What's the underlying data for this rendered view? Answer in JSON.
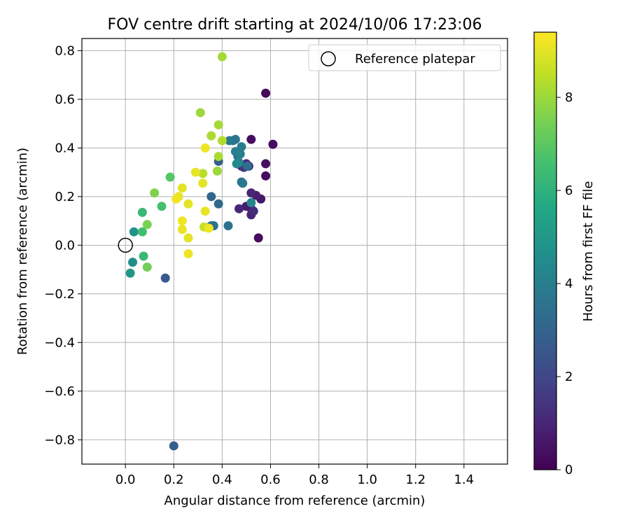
{
  "chart_data": {
    "type": "scatter",
    "title": "FOV centre drift starting at 2024/10/06 17:23:06",
    "xlabel": "Angular distance from reference (arcmin)",
    "ylabel": "Rotation from reference (arcmin)",
    "xlim": [
      -0.18,
      1.58
    ],
    "ylim": [
      -0.9,
      0.85
    ],
    "x_ticks": [
      0.0,
      0.2,
      0.4,
      0.6,
      0.8,
      1.0,
      1.2,
      1.4
    ],
    "x_tick_labels": [
      "0.0",
      "0.2",
      "0.4",
      "0.6",
      "0.8",
      "1.0",
      "1.2",
      "1.4"
    ],
    "y_ticks": [
      -0.8,
      -0.6,
      -0.4,
      -0.2,
      0.0,
      0.2,
      0.4,
      0.6,
      0.8
    ],
    "y_tick_labels": [
      "−0.8",
      "−0.6",
      "−0.4",
      "−0.2",
      "0.0",
      "0.2",
      "0.4",
      "0.6",
      "0.8"
    ],
    "grid": true,
    "legend": {
      "placement": "top-right",
      "entries": [
        {
          "label": "Reference platepar",
          "marker": "open-circle"
        }
      ]
    },
    "reference_point": {
      "x": 0.0,
      "y": 0.0
    },
    "colorbar": {
      "label": "Hours from first FF file",
      "range": [
        0,
        9.4
      ],
      "ticks": [
        0,
        2,
        4,
        6,
        8
      ],
      "tick_labels": [
        "0",
        "2",
        "4",
        "6",
        "8"
      ],
      "colormap": "viridis"
    },
    "points": [
      {
        "x": 0.58,
        "y": 0.625,
        "h": 0.2
      },
      {
        "x": 0.61,
        "y": 0.415,
        "h": 0.3
      },
      {
        "x": 0.58,
        "y": 0.335,
        "h": 0.4
      },
      {
        "x": 0.58,
        "y": 0.285,
        "h": 0.3
      },
      {
        "x": 0.52,
        "y": 0.435,
        "h": 0.3
      },
      {
        "x": 0.55,
        "y": 0.03,
        "h": 0.3
      },
      {
        "x": 0.56,
        "y": 0.19,
        "h": 0.6
      },
      {
        "x": 0.54,
        "y": 0.205,
        "h": 0.8
      },
      {
        "x": 0.52,
        "y": 0.215,
        "h": 1.0
      },
      {
        "x": 0.52,
        "y": 0.15,
        "h": 1.0
      },
      {
        "x": 0.52,
        "y": 0.125,
        "h": 0.9
      },
      {
        "x": 0.53,
        "y": 0.14,
        "h": 1.2
      },
      {
        "x": 0.5,
        "y": 0.16,
        "h": 0.7
      },
      {
        "x": 0.47,
        "y": 0.15,
        "h": 1.0
      },
      {
        "x": 0.51,
        "y": 0.325,
        "h": 0.8
      },
      {
        "x": 0.5,
        "y": 0.335,
        "h": 1.2
      },
      {
        "x": 0.48,
        "y": 0.325,
        "h": 1.0
      },
      {
        "x": 0.49,
        "y": 0.32,
        "h": 1.5
      },
      {
        "x": 0.2,
        "y": -0.825,
        "h": 2.8
      },
      {
        "x": 0.165,
        "y": -0.135,
        "h": 2.6
      },
      {
        "x": 0.385,
        "y": 0.345,
        "h": 2.8
      },
      {
        "x": 0.355,
        "y": 0.2,
        "h": 3.1
      },
      {
        "x": 0.385,
        "y": 0.17,
        "h": 3.2
      },
      {
        "x": 0.355,
        "y": 0.08,
        "h": 3.4
      },
      {
        "x": 0.365,
        "y": 0.08,
        "h": 3.5
      },
      {
        "x": 0.425,
        "y": 0.08,
        "h": 3.6
      },
      {
        "x": 0.43,
        "y": 0.43,
        "h": 3.6
      },
      {
        "x": 0.445,
        "y": 0.43,
        "h": 3.8
      },
      {
        "x": 0.455,
        "y": 0.435,
        "h": 3.7
      },
      {
        "x": 0.48,
        "y": 0.405,
        "h": 3.9
      },
      {
        "x": 0.455,
        "y": 0.385,
        "h": 4.0
      },
      {
        "x": 0.465,
        "y": 0.365,
        "h": 3.6
      },
      {
        "x": 0.475,
        "y": 0.375,
        "h": 4.1
      },
      {
        "x": 0.47,
        "y": 0.34,
        "h": 4.2
      },
      {
        "x": 0.46,
        "y": 0.335,
        "h": 4.4
      },
      {
        "x": 0.48,
        "y": 0.26,
        "h": 3.6
      },
      {
        "x": 0.485,
        "y": 0.255,
        "h": 3.8
      },
      {
        "x": 0.505,
        "y": 0.325,
        "h": 3.4
      },
      {
        "x": 0.52,
        "y": 0.175,
        "h": 4.3
      },
      {
        "x": 0.02,
        "y": -0.115,
        "h": 4.9
      },
      {
        "x": 0.03,
        "y": -0.07,
        "h": 4.6
      },
      {
        "x": 0.035,
        "y": 0.055,
        "h": 4.8
      },
      {
        "x": 0.07,
        "y": 0.135,
        "h": 6.3
      },
      {
        "x": 0.07,
        "y": 0.055,
        "h": 6.5
      },
      {
        "x": 0.075,
        "y": -0.045,
        "h": 6.3
      },
      {
        "x": 0.15,
        "y": 0.16,
        "h": 6.6
      },
      {
        "x": 0.185,
        "y": 0.28,
        "h": 6.9
      },
      {
        "x": 0.09,
        "y": -0.09,
        "h": 7.4
      },
      {
        "x": 0.09,
        "y": 0.085,
        "h": 7.5
      },
      {
        "x": 0.12,
        "y": 0.215,
        "h": 7.6
      },
      {
        "x": 0.31,
        "y": 0.545,
        "h": 8.0
      },
      {
        "x": 0.4,
        "y": 0.775,
        "h": 8.1
      },
      {
        "x": 0.355,
        "y": 0.45,
        "h": 8.2
      },
      {
        "x": 0.385,
        "y": 0.495,
        "h": 8.1
      },
      {
        "x": 0.4,
        "y": 0.43,
        "h": 8.3
      },
      {
        "x": 0.385,
        "y": 0.365,
        "h": 8.2
      },
      {
        "x": 0.38,
        "y": 0.305,
        "h": 8.0
      },
      {
        "x": 0.32,
        "y": 0.295,
        "h": 8.4
      },
      {
        "x": 0.33,
        "y": 0.4,
        "h": 9.2
      },
      {
        "x": 0.29,
        "y": 0.3,
        "h": 9.1
      },
      {
        "x": 0.32,
        "y": 0.255,
        "h": 9.0
      },
      {
        "x": 0.235,
        "y": 0.235,
        "h": 9.0
      },
      {
        "x": 0.22,
        "y": 0.2,
        "h": 9.1
      },
      {
        "x": 0.21,
        "y": 0.19,
        "h": 9.2
      },
      {
        "x": 0.26,
        "y": 0.17,
        "h": 9.0
      },
      {
        "x": 0.33,
        "y": 0.14,
        "h": 9.1
      },
      {
        "x": 0.235,
        "y": 0.1,
        "h": 9.2
      },
      {
        "x": 0.325,
        "y": 0.075,
        "h": 8.6
      },
      {
        "x": 0.345,
        "y": 0.07,
        "h": 9.2
      },
      {
        "x": 0.235,
        "y": 0.065,
        "h": 9.1
      },
      {
        "x": 0.26,
        "y": 0.03,
        "h": 9.0
      },
      {
        "x": 0.26,
        "y": -0.035,
        "h": 9.2
      }
    ]
  }
}
